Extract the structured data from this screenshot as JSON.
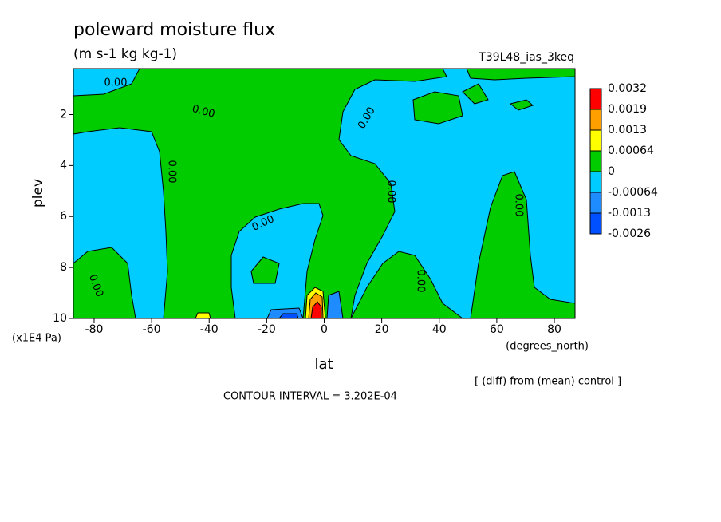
{
  "chart_data": {
    "type": "contour",
    "title": "poleward moisture flux",
    "units": "(m s-1 kg kg-1)",
    "dataset": "T39L48_ias_3keq",
    "x_label": "lat",
    "x_units": "(degrees_north)",
    "y_label": "plev",
    "y_units": "(x1E4 Pa)",
    "xlim": [
      -87.2,
      87.2
    ],
    "xticks": [
      -80,
      -60,
      -40,
      -20,
      0,
      20,
      40,
      60,
      80
    ],
    "ylim": [
      10,
      0.2
    ],
    "yticks": [
      2,
      4,
      6,
      8,
      10
    ],
    "levels": [
      0.0032,
      0.0019,
      0.0013,
      0.00064,
      0,
      -0.00064,
      -0.0013,
      -0.0026
    ],
    "colors": [
      "#ff0000",
      "#ffa000",
      "#ffff00",
      "#00cc00",
      "#00ccff",
      "#1e8cff",
      "#0050ff"
    ],
    "contour_labels": [
      "0.00",
      "0.00",
      "0.00",
      "0.00",
      "0.00",
      "0.00",
      "0.00",
      "0.00",
      "0.00"
    ],
    "note": "[ (diff) from (mean) control ]",
    "contour_interval": "CONTOUR INTERVAL = 3.202E-04"
  }
}
